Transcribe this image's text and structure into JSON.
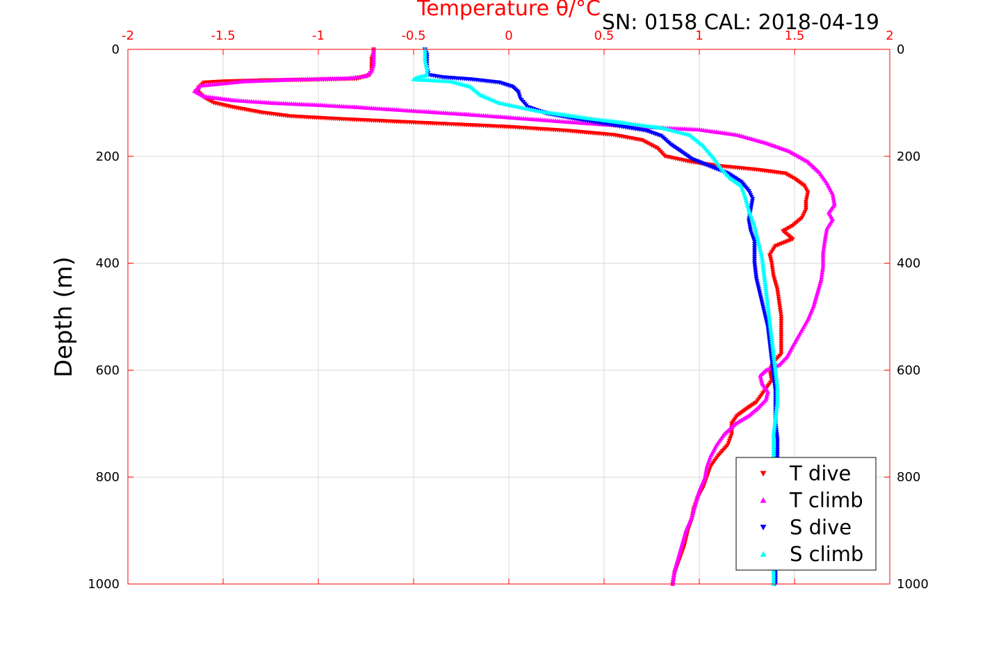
{
  "figure": {
    "title": "Temperature θ/°C",
    "subtitle": "SN: 0158  CAL: 2018-04-19"
  },
  "chart_data": {
    "type": "scatter",
    "title": "Temperature θ/°C",
    "subtitle": "SN: 0158  CAL: 2018-04-19",
    "xlabel": "Temperature θ/°C",
    "ylabel": "Depth (m)",
    "xlim": [
      -2,
      2
    ],
    "ylim": [
      0,
      1000
    ],
    "y_reversed": true,
    "x_axis_location": "top",
    "xticks": [
      -2,
      -1.5,
      -1,
      -0.5,
      0,
      0.5,
      1,
      1.5,
      2
    ],
    "xtick_labels": [
      "-2",
      "-1.5",
      "-1",
      "-0.5",
      "0",
      "0.5",
      "1",
      "1.5",
      "2"
    ],
    "yticks": [
      0,
      200,
      400,
      600,
      800,
      1000
    ],
    "ytick_labels": [
      "0",
      "200",
      "400",
      "600",
      "800",
      "1000"
    ],
    "grid": true,
    "legend_position": "bottom-right",
    "colors": {
      "axis": "#ff0000",
      "grid": "#d9d9d9",
      "text": "#000000"
    },
    "series": [
      {
        "name": "T dive",
        "marker": "triangle-down",
        "color": "#ff0000",
        "points": [
          [
            -0.71,
            0
          ],
          [
            -0.71,
            8
          ],
          [
            -0.72,
            18
          ],
          [
            -0.72,
            30
          ],
          [
            -0.72,
            40
          ],
          [
            -0.73,
            48
          ],
          [
            -0.8,
            55
          ],
          [
            -1.05,
            57
          ],
          [
            -1.3,
            58
          ],
          [
            -1.5,
            60
          ],
          [
            -1.6,
            62
          ],
          [
            -1.63,
            72
          ],
          [
            -1.63,
            80
          ],
          [
            -1.6,
            90
          ],
          [
            -1.55,
            100
          ],
          [
            -1.45,
            108
          ],
          [
            -1.3,
            118
          ],
          [
            -1.15,
            125
          ],
          [
            -0.9,
            130
          ],
          [
            -0.6,
            135
          ],
          [
            -0.3,
            140
          ],
          [
            0.0,
            145
          ],
          [
            0.3,
            152
          ],
          [
            0.55,
            160
          ],
          [
            0.7,
            170
          ],
          [
            0.78,
            185
          ],
          [
            0.82,
            200
          ],
          [
            0.95,
            210
          ],
          [
            1.1,
            218
          ],
          [
            1.3,
            225
          ],
          [
            1.45,
            232
          ],
          [
            1.5,
            242
          ],
          [
            1.55,
            255
          ],
          [
            1.57,
            268
          ],
          [
            1.56,
            285
          ],
          [
            1.56,
            300
          ],
          [
            1.54,
            315
          ],
          [
            1.49,
            330
          ],
          [
            1.44,
            340
          ],
          [
            1.49,
            355
          ],
          [
            1.4,
            368
          ],
          [
            1.37,
            385
          ],
          [
            1.38,
            400
          ],
          [
            1.39,
            425
          ],
          [
            1.41,
            450
          ],
          [
            1.42,
            475
          ],
          [
            1.43,
            500
          ],
          [
            1.43,
            525
          ],
          [
            1.43,
            550
          ],
          [
            1.43,
            570
          ],
          [
            1.39,
            585
          ],
          [
            1.37,
            600
          ],
          [
            1.38,
            620
          ],
          [
            1.34,
            640
          ],
          [
            1.3,
            660
          ],
          [
            1.25,
            672
          ],
          [
            1.2,
            685
          ],
          [
            1.17,
            700
          ],
          [
            1.17,
            720
          ],
          [
            1.15,
            740
          ],
          [
            1.1,
            760
          ],
          [
            1.06,
            780
          ],
          [
            1.04,
            800
          ],
          [
            1.02,
            820
          ],
          [
            0.99,
            840
          ],
          [
            0.97,
            860
          ],
          [
            0.96,
            880
          ],
          [
            0.94,
            900
          ],
          [
            0.92,
            930
          ],
          [
            0.89,
            960
          ],
          [
            0.87,
            980
          ],
          [
            0.86,
            1000
          ]
        ]
      },
      {
        "name": "T climb",
        "marker": "triangle-up",
        "color": "#ff00ff",
        "points": [
          [
            0.86,
            1000
          ],
          [
            0.87,
            975
          ],
          [
            0.89,
            950
          ],
          [
            0.91,
            925
          ],
          [
            0.93,
            900
          ],
          [
            0.96,
            875
          ],
          [
            0.98,
            850
          ],
          [
            1.0,
            825
          ],
          [
            1.03,
            800
          ],
          [
            1.04,
            780
          ],
          [
            1.06,
            760
          ],
          [
            1.09,
            740
          ],
          [
            1.13,
            720
          ],
          [
            1.19,
            700
          ],
          [
            1.26,
            685
          ],
          [
            1.31,
            670
          ],
          [
            1.35,
            655
          ],
          [
            1.36,
            640
          ],
          [
            1.33,
            625
          ],
          [
            1.32,
            610
          ],
          [
            1.35,
            600
          ],
          [
            1.42,
            590
          ],
          [
            1.46,
            575
          ],
          [
            1.49,
            555
          ],
          [
            1.53,
            530
          ],
          [
            1.57,
            505
          ],
          [
            1.6,
            480
          ],
          [
            1.62,
            455
          ],
          [
            1.64,
            430
          ],
          [
            1.65,
            405
          ],
          [
            1.65,
            380
          ],
          [
            1.66,
            355
          ],
          [
            1.67,
            335
          ],
          [
            1.7,
            318
          ],
          [
            1.68,
            305
          ],
          [
            1.71,
            290
          ],
          [
            1.7,
            270
          ],
          [
            1.67,
            250
          ],
          [
            1.63,
            230
          ],
          [
            1.57,
            210
          ],
          [
            1.47,
            190
          ],
          [
            1.35,
            175
          ],
          [
            1.2,
            160
          ],
          [
            1.0,
            150
          ],
          [
            0.7,
            145
          ],
          [
            0.4,
            138
          ],
          [
            0.1,
            130
          ],
          [
            -0.2,
            122
          ],
          [
            -0.5,
            115
          ],
          [
            -0.8,
            108
          ],
          [
            -1.0,
            104
          ],
          [
            -1.25,
            100
          ],
          [
            -1.45,
            95
          ],
          [
            -1.6,
            88
          ],
          [
            -1.65,
            78
          ],
          [
            -1.62,
            68
          ],
          [
            -1.4,
            60
          ],
          [
            -1.1,
            56
          ],
          [
            -0.85,
            54
          ],
          [
            -0.75,
            50
          ],
          [
            -0.72,
            40
          ],
          [
            -0.71,
            28
          ],
          [
            -0.71,
            15
          ],
          [
            -0.71,
            5
          ],
          [
            -0.71,
            0
          ]
        ]
      },
      {
        "name": "S dive",
        "marker": "triangle-down",
        "color": "#0000ff",
        "points": [
          [
            -0.44,
            0
          ],
          [
            -0.43,
            10
          ],
          [
            -0.43,
            22
          ],
          [
            -0.43,
            35
          ],
          [
            -0.42,
            48
          ],
          [
            -0.35,
            52
          ],
          [
            -0.2,
            56
          ],
          [
            -0.05,
            62
          ],
          [
            0.02,
            70
          ],
          [
            0.05,
            80
          ],
          [
            0.06,
            92
          ],
          [
            0.1,
            108
          ],
          [
            0.2,
            120
          ],
          [
            0.38,
            132
          ],
          [
            0.55,
            142
          ],
          [
            0.72,
            152
          ],
          [
            0.8,
            162
          ],
          [
            0.85,
            178
          ],
          [
            0.9,
            190
          ],
          [
            0.96,
            205
          ],
          [
            1.05,
            218
          ],
          [
            1.15,
            232
          ],
          [
            1.22,
            248
          ],
          [
            1.26,
            265
          ],
          [
            1.28,
            280
          ],
          [
            1.27,
            300
          ],
          [
            1.26,
            320
          ],
          [
            1.27,
            340
          ],
          [
            1.29,
            360
          ],
          [
            1.29,
            380
          ],
          [
            1.29,
            400
          ],
          [
            1.3,
            430
          ],
          [
            1.32,
            460
          ],
          [
            1.34,
            490
          ],
          [
            1.36,
            520
          ],
          [
            1.37,
            550
          ],
          [
            1.38,
            580
          ],
          [
            1.39,
            610
          ],
          [
            1.4,
            640
          ],
          [
            1.4,
            670
          ],
          [
            1.4,
            700
          ],
          [
            1.41,
            730
          ],
          [
            1.41,
            760
          ],
          [
            1.4,
            800
          ],
          [
            1.4,
            840
          ],
          [
            1.4,
            880
          ],
          [
            1.4,
            920
          ],
          [
            1.4,
            960
          ],
          [
            1.4,
            1000
          ]
        ]
      },
      {
        "name": "S climb",
        "marker": "triangle-up",
        "color": "#00ffff",
        "points": [
          [
            1.39,
            1000
          ],
          [
            1.39,
            960
          ],
          [
            1.39,
            920
          ],
          [
            1.39,
            880
          ],
          [
            1.39,
            840
          ],
          [
            1.39,
            800
          ],
          [
            1.39,
            760
          ],
          [
            1.39,
            720
          ],
          [
            1.4,
            690
          ],
          [
            1.41,
            660
          ],
          [
            1.41,
            630
          ],
          [
            1.4,
            600
          ],
          [
            1.39,
            570
          ],
          [
            1.38,
            540
          ],
          [
            1.37,
            510
          ],
          [
            1.36,
            480
          ],
          [
            1.35,
            450
          ],
          [
            1.34,
            420
          ],
          [
            1.33,
            390
          ],
          [
            1.31,
            360
          ],
          [
            1.29,
            330
          ],
          [
            1.26,
            300
          ],
          [
            1.24,
            275
          ],
          [
            1.22,
            255
          ],
          [
            1.16,
            240
          ],
          [
            1.12,
            225
          ],
          [
            1.08,
            205
          ],
          [
            1.02,
            180
          ],
          [
            0.95,
            160
          ],
          [
            0.82,
            148
          ],
          [
            0.62,
            138
          ],
          [
            0.4,
            128
          ],
          [
            0.15,
            115
          ],
          [
            -0.05,
            100
          ],
          [
            -0.15,
            85
          ],
          [
            -0.2,
            70
          ],
          [
            -0.3,
            60
          ],
          [
            -0.5,
            56
          ],
          [
            -0.48,
            52
          ],
          [
            -0.43,
            48
          ],
          [
            -0.43,
            35
          ],
          [
            -0.44,
            20
          ],
          [
            -0.44,
            8
          ],
          [
            -0.44,
            0
          ]
        ]
      }
    ]
  }
}
